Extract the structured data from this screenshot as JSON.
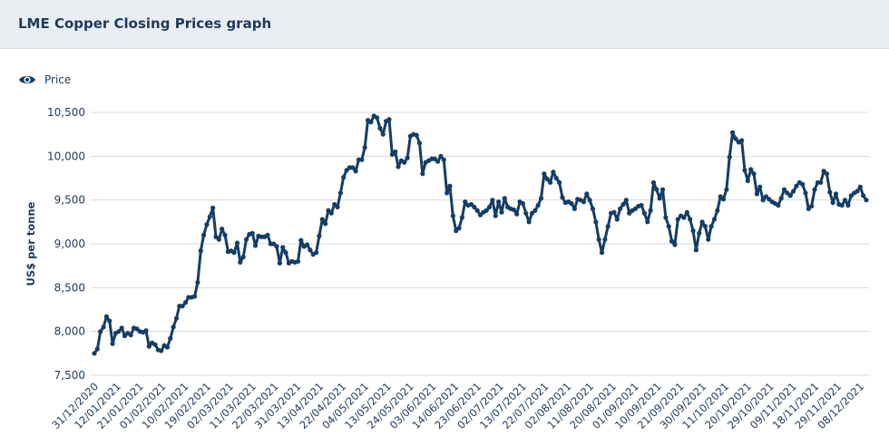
{
  "header": {
    "title": "LME Copper Closing Prices graph"
  },
  "legend": {
    "icon": "eye-icon",
    "label": "Price"
  },
  "colors": {
    "line": "#143d66",
    "grid": "#d9d9d9",
    "header_bg": "#e9eef2"
  },
  "chart_data": {
    "type": "line",
    "title": "",
    "xlabel": "",
    "ylabel": "US$ per tonne",
    "ylim": [
      7500,
      10500
    ],
    "yticks": [
      7500,
      8000,
      8500,
      9000,
      9500,
      10000,
      10500
    ],
    "ytick_labels": [
      "7,500",
      "8,000",
      "8,500",
      "9,000",
      "9,500",
      "10,000",
      "10,500"
    ],
    "xtick_labels": [
      "31/12/2020",
      "12/01/2021",
      "21/01/2021",
      "01/02/2021",
      "10/02/2021",
      "19/02/2021",
      "02/03/2021",
      "11/03/2021",
      "22/03/2021",
      "31/03/2021",
      "13/04/2021",
      "22/04/2021",
      "04/05/2021",
      "13/05/2021",
      "24/05/2021",
      "03/06/2021",
      "14/06/2021",
      "23/06/2021",
      "02/07/2021",
      "13/07/2021",
      "22/07/2021",
      "02/08/2021",
      "11/08/2021",
      "20/08/2021",
      "01/09/2021",
      "10/09/2021",
      "21/09/2021",
      "30/09/2021",
      "11/10/2021",
      "20/10/2021",
      "29/10/2021",
      "09/11/2021",
      "18/11/2021",
      "29/11/2021",
      "08/12/2021"
    ],
    "grid": true,
    "legend": "top-left",
    "series": [
      {
        "name": "Price",
        "values": [
          7750,
          7800,
          8000,
          8050,
          8170,
          8120,
          7860,
          7980,
          8000,
          8040,
          7950,
          7980,
          7960,
          8040,
          8030,
          8000,
          7990,
          8010,
          7830,
          7870,
          7850,
          7790,
          7780,
          7840,
          7820,
          7920,
          8050,
          8150,
          8290,
          8290,
          8330,
          8390,
          8390,
          8400,
          8560,
          8920,
          9100,
          9220,
          9310,
          9410,
          9080,
          9050,
          9170,
          9100,
          8910,
          8920,
          8900,
          9010,
          8790,
          8850,
          9050,
          9110,
          9120,
          8980,
          9090,
          9080,
          9080,
          9100,
          9000,
          9000,
          8970,
          8780,
          8960,
          8900,
          8780,
          8800,
          8790,
          8800,
          9040,
          8970,
          8990,
          8930,
          8880,
          8900,
          9090,
          9280,
          9230,
          9380,
          9350,
          9450,
          9420,
          9580,
          9760,
          9840,
          9870,
          9870,
          9830,
          9960,
          9960,
          10100,
          10410,
          10390,
          10460,
          10440,
          10320,
          10250,
          10400,
          10420,
          10020,
          10050,
          9880,
          9950,
          9930,
          9980,
          10230,
          10250,
          10240,
          10150,
          9800,
          9930,
          9950,
          9970,
          9970,
          9940,
          10000,
          9960,
          9580,
          9660,
          9320,
          9150,
          9180,
          9300,
          9480,
          9440,
          9450,
          9420,
          9380,
          9330,
          9360,
          9380,
          9420,
          9500,
          9320,
          9480,
          9360,
          9520,
          9420,
          9400,
          9390,
          9340,
          9480,
          9460,
          9350,
          9250,
          9350,
          9380,
          9440,
          9520,
          9800,
          9740,
          9700,
          9820,
          9750,
          9700,
          9530,
          9470,
          9480,
          9460,
          9400,
          9510,
          9500,
          9480,
          9570,
          9500,
          9400,
          9250,
          9050,
          8900,
          9050,
          9200,
          9350,
          9360,
          9280,
          9400,
          9450,
          9500,
          9350,
          9380,
          9400,
          9430,
          9440,
          9350,
          9250,
          9380,
          9700,
          9620,
          9520,
          9620,
          9300,
          9200,
          9030,
          8990,
          9280,
          9320,
          9300,
          9360,
          9280,
          9150,
          8930,
          9120,
          9250,
          9200,
          9050,
          9200,
          9280,
          9380,
          9540,
          9510,
          9620,
          9990,
          10270,
          10200,
          10160,
          10180,
          9840,
          9720,
          9850,
          9800,
          9570,
          9650,
          9500,
          9540,
          9510,
          9480,
          9460,
          9440,
          9520,
          9620,
          9580,
          9550,
          9600,
          9660,
          9700,
          9680,
          9580,
          9400,
          9430,
          9620,
          9700,
          9700,
          9830,
          9800,
          9590,
          9470,
          9570,
          9450,
          9440,
          9500,
          9440,
          9550,
          9580,
          9600,
          9650,
          9550,
          9500
        ]
      }
    ]
  }
}
